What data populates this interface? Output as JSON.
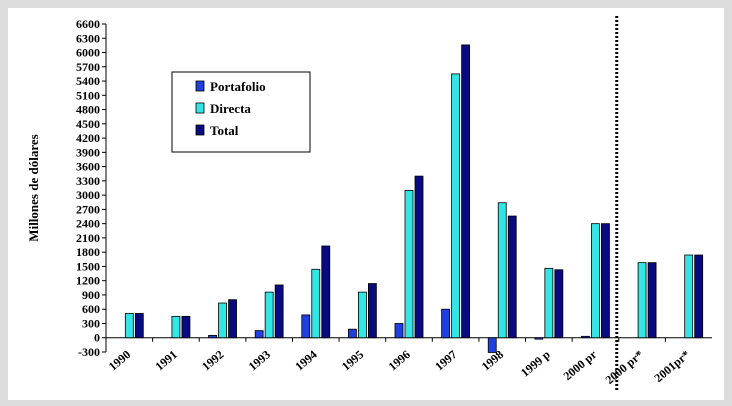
{
  "chart_data": {
    "type": "bar",
    "ylabel": "Millones de dólares",
    "xlabel": "",
    "title": "",
    "ylim": [
      -300,
      6600
    ],
    "yticks": [
      -300,
      0,
      300,
      600,
      900,
      1200,
      1500,
      1800,
      2100,
      2400,
      2700,
      3000,
      3300,
      3600,
      3900,
      4200,
      4500,
      4800,
      5100,
      5400,
      5700,
      6000,
      6300,
      6600
    ],
    "categories": [
      "1990",
      "1991",
      "1992",
      "1993",
      "1994",
      "1995",
      "1996",
      "1997",
      "1998",
      "1999 p",
      "2000 pr",
      "2000 pr*",
      "2001pr*"
    ],
    "series": [
      {
        "name": "Portafolio",
        "color": "#1f3fe0",
        "values": [
          0,
          0,
          50,
          150,
          480,
          180,
          300,
          600,
          -310,
          -30,
          30,
          0,
          0
        ]
      },
      {
        "name": "Directa",
        "color": "#33e5e5",
        "values": [
          510,
          450,
          730,
          960,
          1440,
          960,
          3100,
          5550,
          2840,
          1460,
          2400,
          1580,
          1740
        ]
      },
      {
        "name": "Total",
        "color": "#0a0a80",
        "values": [
          510,
          450,
          800,
          1110,
          1930,
          1140,
          3400,
          6160,
          2560,
          1430,
          2400,
          1580,
          1740
        ]
      }
    ],
    "grid": false,
    "legend": "upper-left",
    "separator_after_category": "2000 pr",
    "panel_color": "#ffffff",
    "background_color": "#dcdcdc"
  }
}
